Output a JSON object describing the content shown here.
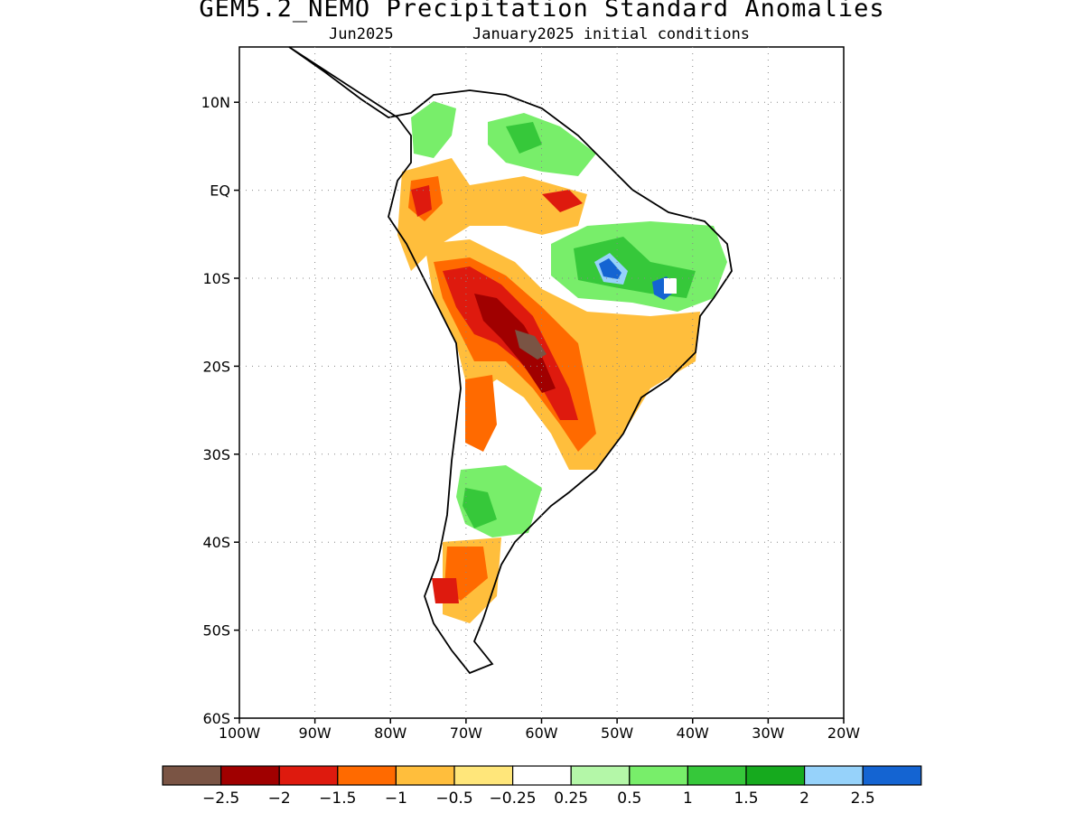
{
  "title": "GEM5.2_NEMO Precipitation Standard Anomalies",
  "subtitle_left": "Jun2025",
  "subtitle_right": "January2025 initial conditions",
  "map": {
    "lon_range": [
      -100,
      -20
    ],
    "lat_range": [
      -60,
      15
    ],
    "lat_labels": [
      "10N",
      "EQ",
      "10S",
      "20S",
      "30S",
      "40S",
      "50S",
      "60S"
    ],
    "lat_values": [
      10,
      0,
      -10,
      -20,
      -30,
      -40,
      -50,
      -60
    ],
    "lon_labels": [
      "100W",
      "90W",
      "80W",
      "70W",
      "60W",
      "50W",
      "40W",
      "30W",
      "20W"
    ],
    "lon_values": [
      -100,
      -90,
      -80,
      -70,
      -60,
      -50,
      -40,
      -30,
      -20
    ],
    "grid": "dotted"
  },
  "colorbar": {
    "colors": [
      "#7a5444",
      "#a00000",
      "#de1a0e",
      "#ff6a00",
      "#ffbe3c",
      "#ffe67a",
      "#ffffff",
      "#b4f7a8",
      "#78ee6a",
      "#36c83a",
      "#16aa1e",
      "#96d2fa",
      "#1464d2"
    ],
    "labels": [
      "−2.5",
      "−2",
      "−1.5",
      "−1",
      "−0.5",
      "−0.25",
      "0.25",
      "0.5",
      "1",
      "1.5",
      "2",
      "2.5"
    ]
  }
}
